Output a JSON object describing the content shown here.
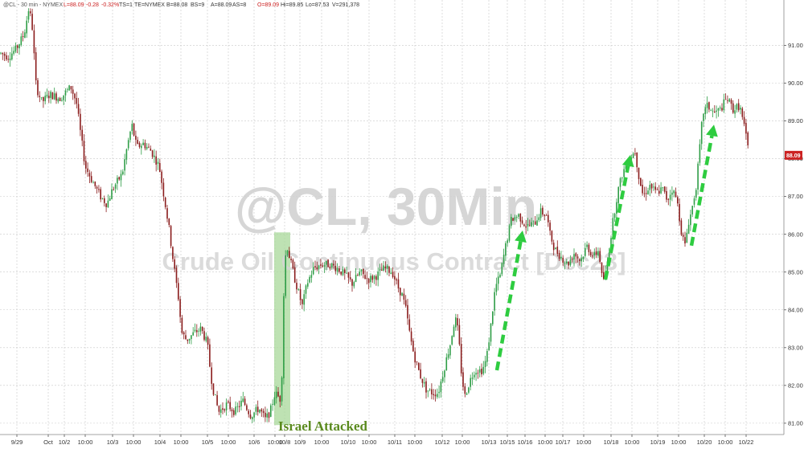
{
  "chart_data": {
    "type": "candlestick",
    "title": "@CL, 30Min",
    "subtitle": "Crude Oil Continuous Contract [Dec23]",
    "header": {
      "symbol": "@CL - 30 min - NYMEX",
      "last": "L=88.09",
      "change": "-0.28",
      "change_pct": "-0.32%",
      "ts": "TS=1",
      "exchange": "TE=NYMEX",
      "bid": "B=88.08",
      "bid_size": "BS=9",
      "ask": "A=88.09",
      "ask_size": "AS=8",
      "open": "O=89.09",
      "high": "Hi=89.85",
      "low": "Lo=87.53",
      "volume": "V=291,378"
    },
    "ylim": [
      80.7,
      92.2
    ],
    "y_ticks": [
      "81.00",
      "82.00",
      "83.00",
      "84.00",
      "85.00",
      "86.00",
      "87.00",
      "88.00",
      "89.00",
      "90.00",
      "91.00"
    ],
    "last_price_label": "88.09",
    "x_tick_labels": [
      "9/29",
      "Oct",
      "10/2",
      "10:00",
      "10/3",
      "10:00",
      "10/4",
      "10:00",
      "10/5",
      "10:00",
      "10/6",
      "10:00",
      "10/8",
      "10/9",
      "10:00",
      "10/10",
      "10:00",
      "10/11",
      "10:00",
      "10/12",
      "10:00",
      "10/13",
      "10/15",
      "10/16",
      "10:00",
      "10/17",
      "10:00",
      "10/18",
      "10:00",
      "10/19",
      "10:00",
      "10/20",
      "10:00",
      "10/22"
    ],
    "price_path": [
      [
        0,
        90.8
      ],
      [
        10,
        90.7
      ],
      [
        20,
        90.9
      ],
      [
        30,
        91.3
      ],
      [
        36,
        92.0
      ],
      [
        40,
        91.5
      ],
      [
        45,
        89.9
      ],
      [
        52,
        89.5
      ],
      [
        62,
        89.7
      ],
      [
        75,
        89.6
      ],
      [
        88,
        89.9
      ],
      [
        95,
        89.5
      ],
      [
        100,
        88.7
      ],
      [
        106,
        87.8
      ],
      [
        115,
        87.4
      ],
      [
        125,
        87.0
      ],
      [
        133,
        86.8
      ],
      [
        140,
        87.2
      ],
      [
        152,
        87.6
      ],
      [
        158,
        88.3
      ],
      [
        164,
        88.9
      ],
      [
        170,
        88.3
      ],
      [
        178,
        88.4
      ],
      [
        188,
        88.2
      ],
      [
        198,
        87.8
      ],
      [
        204,
        87.0
      ],
      [
        210,
        86.2
      ],
      [
        216,
        85.2
      ],
      [
        222,
        84.3
      ],
      [
        226,
        83.4
      ],
      [
        232,
        83.2
      ],
      [
        242,
        83.4
      ],
      [
        250,
        83.5
      ],
      [
        258,
        83.1
      ],
      [
        262,
        82.3
      ],
      [
        266,
        81.8
      ],
      [
        272,
        81.3
      ],
      [
        282,
        81.5
      ],
      [
        292,
        81.3
      ],
      [
        302,
        81.6
      ],
      [
        312,
        81.2
      ],
      [
        322,
        81.4
      ],
      [
        330,
        81.1
      ],
      [
        336,
        81.3
      ],
      [
        342,
        81.8
      ],
      [
        350,
        81.6
      ],
      [
        352,
        84.0
      ],
      [
        356,
        85.8
      ],
      [
        360,
        85.4
      ],
      [
        368,
        84.7
      ],
      [
        376,
        84.1
      ],
      [
        382,
        84.7
      ],
      [
        390,
        85.1
      ],
      [
        400,
        85.2
      ],
      [
        410,
        85.2
      ],
      [
        420,
        85.1
      ],
      [
        430,
        84.9
      ],
      [
        438,
        84.7
      ],
      [
        448,
        85.0
      ],
      [
        458,
        84.8
      ],
      [
        468,
        84.9
      ],
      [
        478,
        85.1
      ],
      [
        488,
        85.0
      ],
      [
        495,
        84.6
      ],
      [
        500,
        84.4
      ],
      [
        505,
        84.0
      ],
      [
        510,
        83.3
      ],
      [
        515,
        82.8
      ],
      [
        522,
        82.3
      ],
      [
        530,
        81.9
      ],
      [
        538,
        81.8
      ],
      [
        545,
        81.8
      ],
      [
        553,
        82.5
      ],
      [
        560,
        83.1
      ],
      [
        566,
        83.8
      ],
      [
        570,
        83.4
      ],
      [
        574,
        82.3
      ],
      [
        578,
        81.7
      ],
      [
        584,
        82.1
      ],
      [
        590,
        82.4
      ],
      [
        600,
        82.4
      ],
      [
        605,
        82.7
      ],
      [
        610,
        83.5
      ],
      [
        616,
        84.6
      ],
      [
        622,
        84.9
      ],
      [
        628,
        85.6
      ],
      [
        636,
        86.4
      ],
      [
        645,
        86.5
      ],
      [
        655,
        86.2
      ],
      [
        665,
        86.3
      ],
      [
        672,
        86.6
      ],
      [
        680,
        86.5
      ],
      [
        684,
        86.0
      ],
      [
        690,
        85.6
      ],
      [
        698,
        85.4
      ],
      [
        706,
        85.2
      ],
      [
        714,
        85.5
      ],
      [
        722,
        85.3
      ],
      [
        730,
        85.7
      ],
      [
        738,
        85.4
      ],
      [
        745,
        85.6
      ],
      [
        748,
        84.9
      ],
      [
        752,
        84.8
      ],
      [
        757,
        85.5
      ],
      [
        762,
        86.3
      ],
      [
        768,
        87.1
      ],
      [
        774,
        87.6
      ],
      [
        780,
        87.9
      ],
      [
        786,
        88.1
      ],
      [
        790,
        88.2
      ],
      [
        794,
        87.6
      ],
      [
        800,
        87.0
      ],
      [
        808,
        87.3
      ],
      [
        816,
        87.1
      ],
      [
        824,
        87.2
      ],
      [
        830,
        86.9
      ],
      [
        836,
        87.2
      ],
      [
        842,
        86.9
      ],
      [
        848,
        86.0
      ],
      [
        852,
        85.7
      ],
      [
        856,
        86.3
      ],
      [
        860,
        86.6
      ],
      [
        866,
        87.3
      ],
      [
        870,
        88.2
      ],
      [
        874,
        89.2
      ],
      [
        880,
        89.4
      ],
      [
        888,
        89.2
      ],
      [
        896,
        89.3
      ],
      [
        904,
        89.6
      ],
      [
        912,
        89.3
      ],
      [
        920,
        89.4
      ],
      [
        926,
        88.8
      ],
      [
        932,
        88.1
      ]
    ],
    "highlight_band": {
      "x_from": "10/6 evening",
      "x_to": "10/8",
      "y_from": 80.95,
      "y_to": 86.05,
      "color": "#a8d89a"
    },
    "annotations": [
      {
        "text": "Israel Attacked"
      }
    ],
    "trend_arrows": [
      {
        "from": [
          618,
          82.4
        ],
        "to": [
          650,
          86.1
        ],
        "color": "#2ecc40"
      },
      {
        "from": [
          753,
          84.8
        ],
        "to": [
          784,
          88.1
        ],
        "color": "#2ecc40"
      },
      {
        "from": [
          860,
          85.7
        ],
        "to": [
          888,
          88.9
        ],
        "color": "#2ecc40"
      }
    ],
    "colors": {
      "up": "#2e9d46",
      "down": "#8a1c1c",
      "grid": "#c9c9c9",
      "last_price_badge": "#cc2222"
    }
  }
}
